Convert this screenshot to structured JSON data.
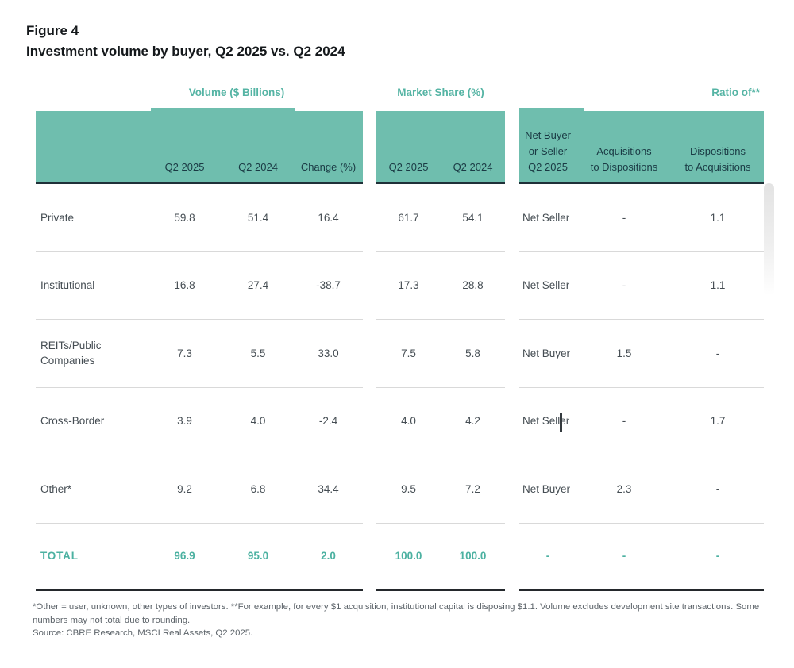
{
  "figure": {
    "label": "Figure 4",
    "title": "Investment volume by buyer, Q2 2025 vs. Q2 2024"
  },
  "groups": {
    "volume": "Volume ($ Billions)",
    "market_share": "Market Share (%)",
    "ratio": "Ratio of**"
  },
  "columns": {
    "volume": [
      "Q2 2025",
      "Q2 2024",
      "Change (%)"
    ],
    "share": [
      "Q2 2025",
      "Q2 2024"
    ],
    "ratio": [
      "Net Buyer\nor Seller\nQ2 2025",
      "Acquisitions\nto Dispositions",
      "Dispositions\nto Acquisitions"
    ]
  },
  "rows": [
    {
      "label": "Private",
      "volume": [
        "59.8",
        "51.4",
        "16.4"
      ],
      "share": [
        "61.7",
        "54.1"
      ],
      "ratio": [
        "Net Seller",
        "-",
        "1.1"
      ]
    },
    {
      "label": "Institutional",
      "volume": [
        "16.8",
        "27.4",
        "-38.7"
      ],
      "share": [
        "17.3",
        "28.8"
      ],
      "ratio": [
        "Net Seller",
        "-",
        "1.1"
      ]
    },
    {
      "label": "REITs/Public\nCompanies",
      "volume": [
        "7.3",
        "5.5",
        "33.0"
      ],
      "share": [
        "7.5",
        "5.8"
      ],
      "ratio": [
        "Net Buyer",
        "1.5",
        "-"
      ]
    },
    {
      "label": "Cross-Border",
      "volume": [
        "3.9",
        "4.0",
        "-2.4"
      ],
      "share": [
        "4.0",
        "4.2"
      ],
      "ratio": [
        "Net Seller",
        "-",
        "1.7"
      ]
    },
    {
      "label": "Other*",
      "volume": [
        "9.2",
        "6.8",
        "34.4"
      ],
      "share": [
        "9.5",
        "7.2"
      ],
      "ratio": [
        "Net Buyer",
        "2.3",
        "-"
      ]
    }
  ],
  "total": {
    "label": "TOTAL",
    "volume": [
      "96.9",
      "95.0",
      "2.0"
    ],
    "share": [
      "100.0",
      "100.0"
    ],
    "ratio": [
      "-",
      "-",
      "-"
    ]
  },
  "footnotes": [
    "*Other = user, unknown, other types of investors. **For example, for every $1 acquisition, institutional capital is disposing $1.1. Volume excludes development site transactions. Some",
    "numbers may not total due to rounding.",
    "Source: CBRE Research, MSCI Real Assets, Q2 2025."
  ],
  "colors": {
    "band_teal": "#6fbeae",
    "teal_text": "#55b4a4",
    "total_teal": "#4cb1a1",
    "band_header_text": "#1a3a44",
    "body_text": "#454d53",
    "footnote_text": "#5d646a",
    "separator": "#d9d9d9",
    "dark_rule": "#24282c"
  }
}
